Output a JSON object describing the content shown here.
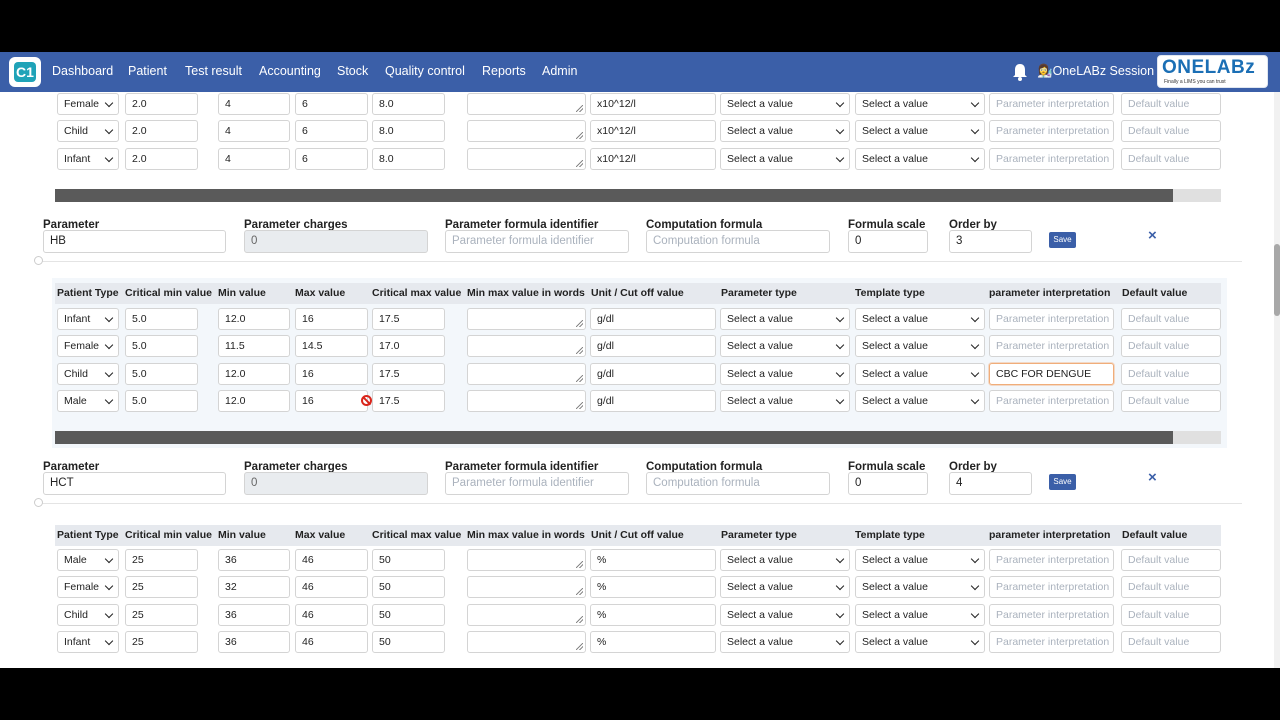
{
  "nav": {
    "items": [
      "Dashboard",
      "Patient",
      "Test result",
      "Accounting",
      "Stock",
      "Quality control",
      "Reports",
      "Admin"
    ],
    "session": "OneLABz Session",
    "brand_name": "ONELABz",
    "brand_tagline": "Finally a LIMS you can trust",
    "app_logo_text": "C1"
  },
  "labels": {
    "parameter": "Parameter",
    "parameter_charges": "Parameter charges",
    "formula_identifier": "Parameter formula identifier",
    "computation_formula": "Computation formula",
    "formula_scale": "Formula scale",
    "order_by": "Order by",
    "save": "Save",
    "close": "×"
  },
  "columns": [
    "Patient Type",
    "Critical min value",
    "Min value",
    "Max value",
    "Critical max value",
    "Min max value in words",
    "Unit / Cut off value",
    "Parameter type",
    "Template type",
    "parameter interpretation",
    "Default value"
  ],
  "placeholders": {
    "select": "Select a value",
    "interpretation": "Parameter interpretation",
    "default": "Default value",
    "formula_identifier": "Parameter formula identifier",
    "computation": "Computation formula"
  },
  "top_rows": [
    {
      "patient_type": "Female",
      "crit_min": "2.0",
      "min": "4",
      "max": "6",
      "crit_max": "8.0",
      "unit": "x10^12/l"
    },
    {
      "patient_type": "Child",
      "crit_min": "2.0",
      "min": "4",
      "max": "6",
      "crit_max": "8.0",
      "unit": "x10^12/l"
    },
    {
      "patient_type": "Infant",
      "crit_min": "2.0",
      "min": "4",
      "max": "6",
      "crit_max": "8.0",
      "unit": "x10^12/l"
    }
  ],
  "sections": [
    {
      "parameter": "HB",
      "charges": "0",
      "formula_scale": "0",
      "order_by": "3",
      "rows": [
        {
          "patient_type": "Infant",
          "crit_min": "5.0",
          "min": "12.0",
          "max": "16",
          "crit_max": "17.5",
          "unit": "g/dl",
          "interp": ""
        },
        {
          "patient_type": "Female",
          "crit_min": "5.0",
          "min": "11.5",
          "max": "14.5",
          "crit_max": "17.0",
          "unit": "g/dl",
          "interp": ""
        },
        {
          "patient_type": "Child",
          "crit_min": "5.0",
          "min": "12.0",
          "max": "16",
          "crit_max": "17.5",
          "unit": "g/dl",
          "interp": "CBC FOR DENGUE"
        },
        {
          "patient_type": "Male",
          "crit_min": "5.0",
          "min": "12.0",
          "max": "16",
          "crit_max": "17.5",
          "unit": "g/dl",
          "interp": ""
        }
      ]
    },
    {
      "parameter": "HCT",
      "charges": "0",
      "formula_scale": "0",
      "order_by": "4",
      "rows": [
        {
          "patient_type": "Male",
          "crit_min": "25",
          "min": "36",
          "max": "46",
          "crit_max": "50",
          "unit": "%",
          "interp": ""
        },
        {
          "patient_type": "Female",
          "crit_min": "25",
          "min": "32",
          "max": "46",
          "crit_max": "50",
          "unit": "%",
          "interp": ""
        },
        {
          "patient_type": "Child",
          "crit_min": "25",
          "min": "36",
          "max": "46",
          "crit_max": "50",
          "unit": "%",
          "interp": ""
        },
        {
          "patient_type": "Infant",
          "crit_min": "25",
          "min": "36",
          "max": "46",
          "crit_max": "50",
          "unit": "%",
          "interp": ""
        }
      ]
    }
  ]
}
